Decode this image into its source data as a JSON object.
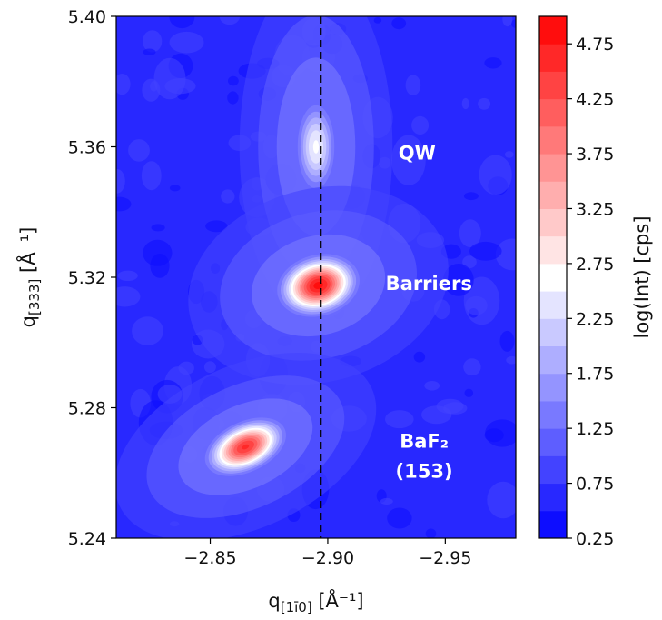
{
  "chart_data": {
    "type": "heatmap",
    "title": "",
    "xlabel": "q[1ī0] [Å⁻¹]",
    "ylabel": "q[333] [Å⁻¹]",
    "xlim": [
      -2.81,
      -2.98
    ],
    "ylim": [
      5.24,
      5.4
    ],
    "xticks": [
      -2.85,
      -2.9,
      -2.95
    ],
    "xtick_labels": [
      "−2.85",
      "−2.90",
      "−2.95"
    ],
    "yticks": [
      5.24,
      5.28,
      5.32,
      5.36,
      5.4
    ],
    "ytick_labels": [
      "5.24",
      "5.28",
      "5.32",
      "5.36",
      "5.40"
    ],
    "colorbar": {
      "label": "log(Int) [cps]",
      "range": [
        0.25,
        5.0
      ],
      "ticks": [
        0.25,
        0.75,
        1.25,
        1.75,
        2.25,
        2.75,
        3.25,
        3.75,
        4.25,
        4.75
      ],
      "tick_labels": [
        "0.25",
        "0.75",
        "1.25",
        "1.75",
        "2.25",
        "2.75",
        "3.25",
        "3.75",
        "4.25",
        "4.75"
      ],
      "colormap": "bwr",
      "levels": 19
    },
    "vline": {
      "x": -2.897,
      "style": "dashed",
      "color": "#000000"
    },
    "peaks": [
      {
        "name": "QW",
        "x": -2.895,
        "y": 5.36,
        "peak_value": 2.6,
        "sigma_x": 0.0055,
        "sigma_y": 0.009,
        "angle": 0
      },
      {
        "name": "Barriers",
        "x": -2.896,
        "y": 5.3175,
        "peak_value": 4.9,
        "sigma_x": 0.0095,
        "sigma_y": 0.005,
        "angle": -15
      },
      {
        "name": "BaF2 (153)",
        "x": -2.865,
        "y": 5.268,
        "peak_value": 4.6,
        "sigma_x": 0.01,
        "sigma_y": 0.0042,
        "angle": -25
      }
    ],
    "background_value": 0.55,
    "annotations": [
      {
        "lines": [
          "QW"
        ],
        "x": -2.938,
        "y": 5.358
      },
      {
        "lines": [
          "Barriers"
        ],
        "x": -2.943,
        "y": 5.318
      },
      {
        "lines": [
          "BaF₂",
          "(153)"
        ],
        "x": -2.941,
        "y": 5.266
      }
    ]
  }
}
